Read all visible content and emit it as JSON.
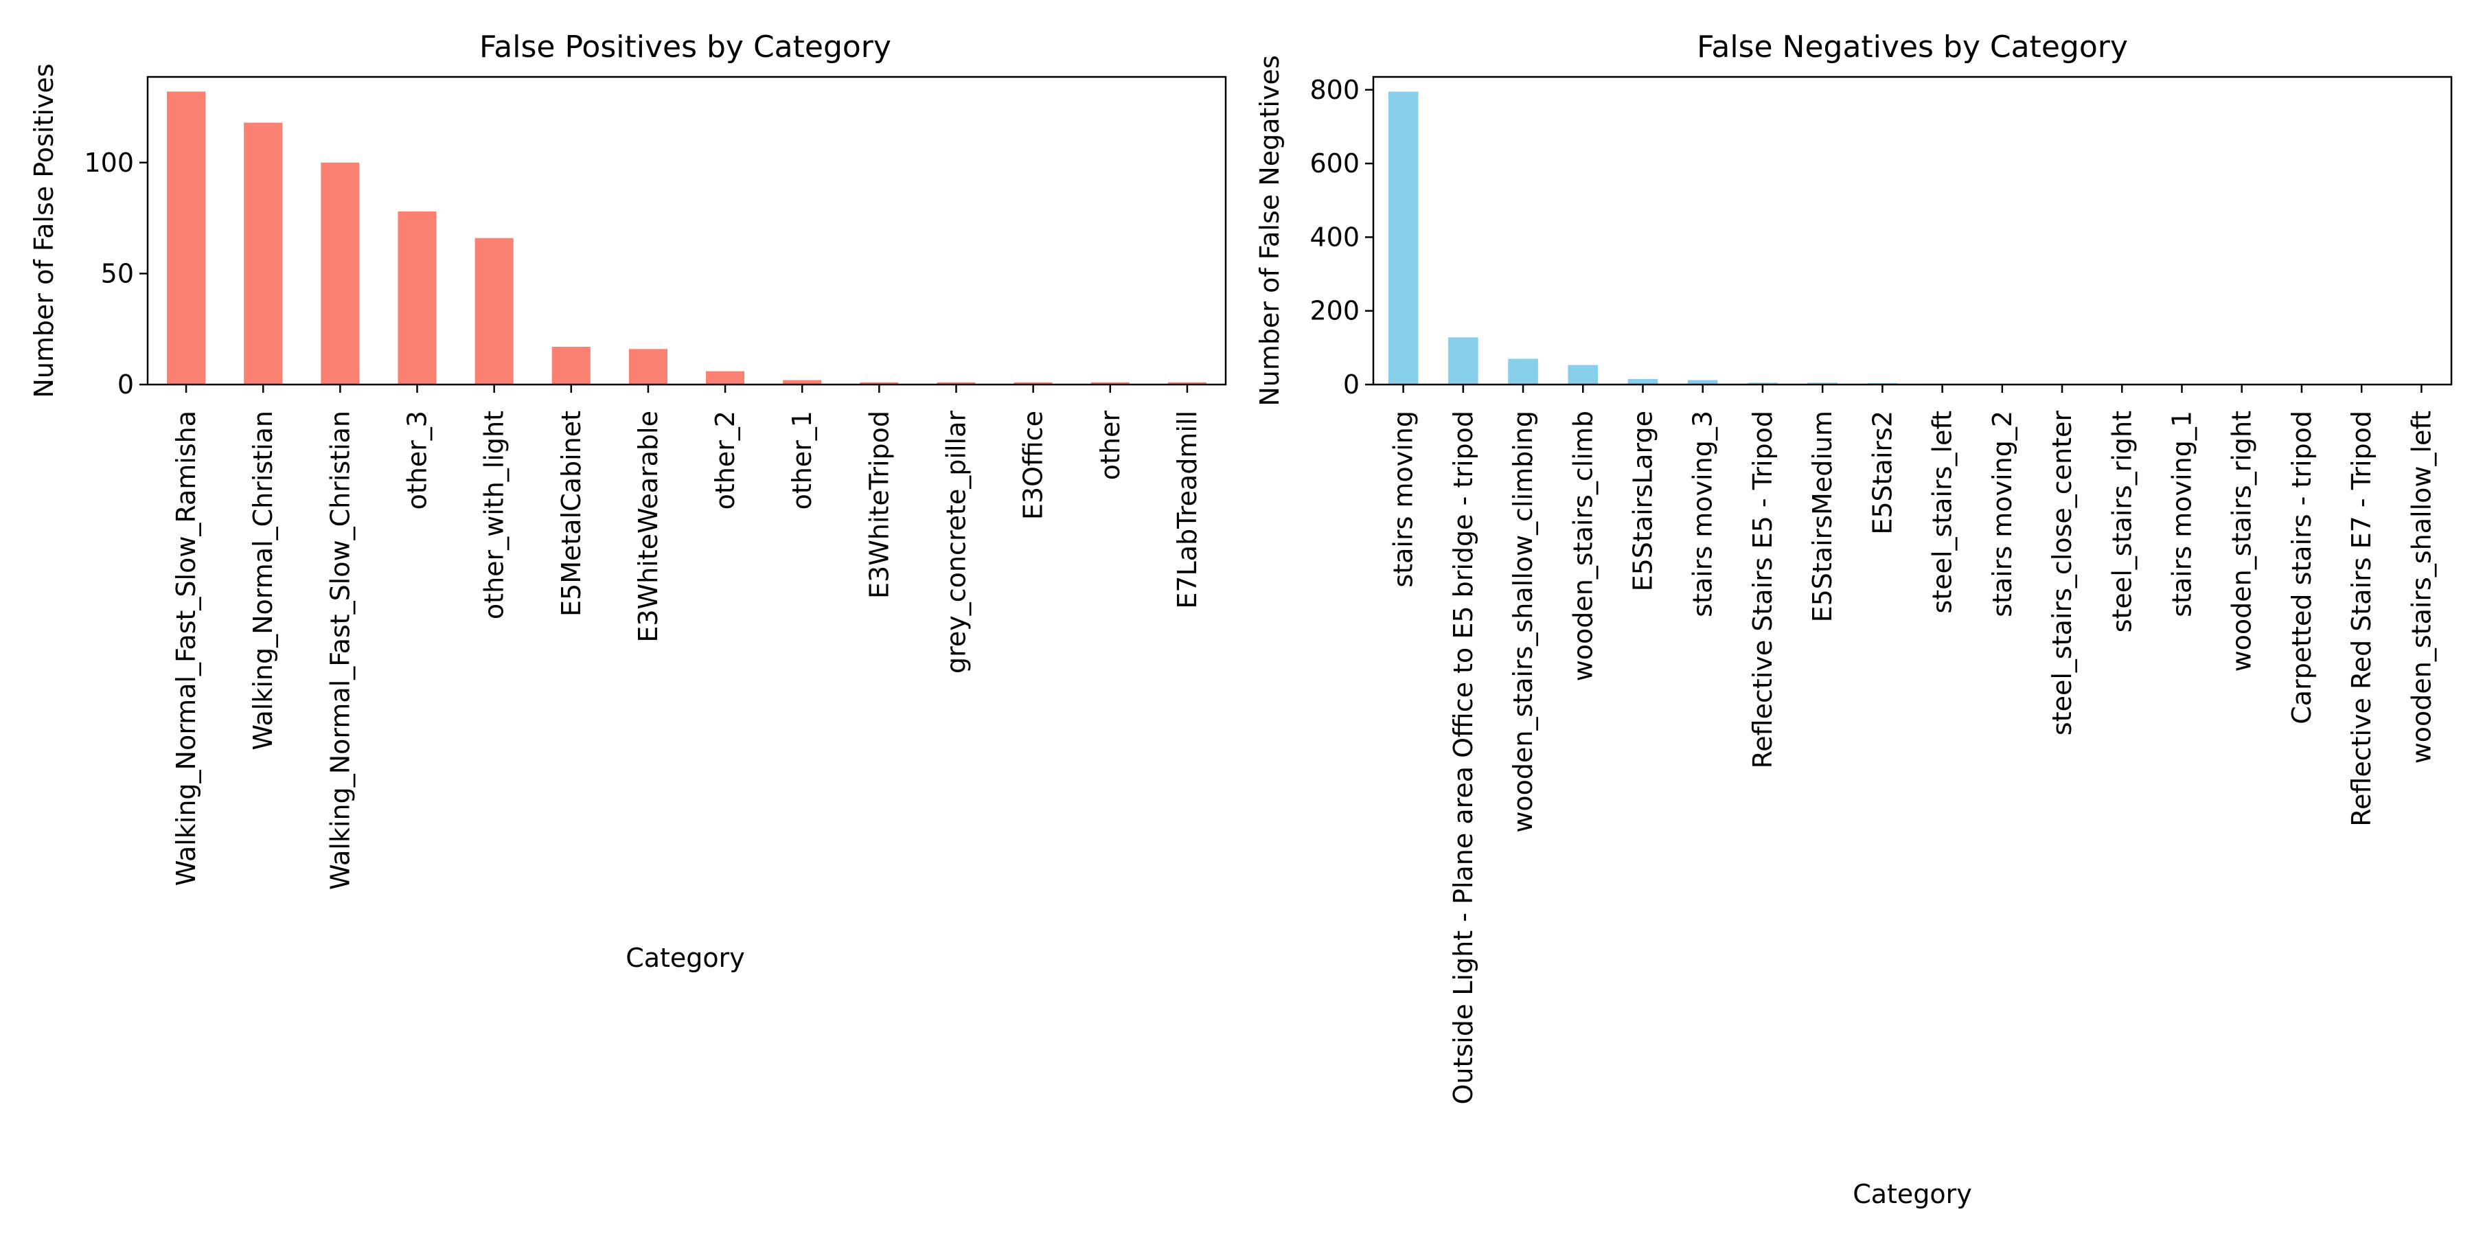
{
  "chart_data": [
    {
      "type": "bar",
      "title": "False Positives by Category",
      "xlabel": "Category",
      "ylabel": "Number of False Positives",
      "color": "#FA8072",
      "categories": [
        "Walking_Normal_Fast_Slow_Ramisha",
        "Walking_Normal_Christian",
        "Walking_Normal_Fast_Slow_Christian",
        "other_3",
        "other_with_light",
        "E5MetalCabinet",
        "E3WhiteWearable",
        "other_2",
        "other_1",
        "E3WhiteTripod",
        "grey_concrete_pillar",
        "E3Office",
        "other",
        "E7LabTreadmill"
      ],
      "values": [
        132,
        118,
        100,
        78,
        66,
        17,
        16,
        6,
        2,
        1,
        1,
        1,
        1,
        1
      ],
      "ylim": [
        0,
        138.6
      ],
      "yticks": [
        0,
        50,
        100
      ],
      "grid": false,
      "legend": "none"
    },
    {
      "type": "bar",
      "title": "False Negatives by Category",
      "xlabel": "Category",
      "ylabel": "Number of False Negatives",
      "color": "#87CEEB",
      "categories": [
        "stairs moving",
        "Outside Light - Plane area Office to E5 bridge - tripod",
        "wooden_stairs_shallow_climbing",
        "wooden_stairs_climb",
        "E5StairsLarge",
        "stairs moving_3",
        "Reflective Stairs E5 - Tripod",
        "E5StairsMedium",
        "E5Stairs2",
        "steel_stairs_left",
        "stairs moving_2",
        "steel_stairs_close_center",
        "steel_stairs_right",
        "stairs moving_1",
        "wooden_stairs_right",
        "Carpetted stairs - tripod",
        "Reflective Red Stairs E7 - Tripod",
        "wooden_stairs_shallow_left"
      ],
      "values": [
        795,
        128,
        70,
        53,
        15,
        12,
        5,
        5,
        4,
        2,
        1,
        1,
        1,
        1,
        1,
        1,
        1,
        1
      ],
      "ylim": [
        0,
        835
      ],
      "yticks": [
        0,
        200,
        400,
        600,
        800
      ],
      "grid": false,
      "legend": "none"
    }
  ]
}
